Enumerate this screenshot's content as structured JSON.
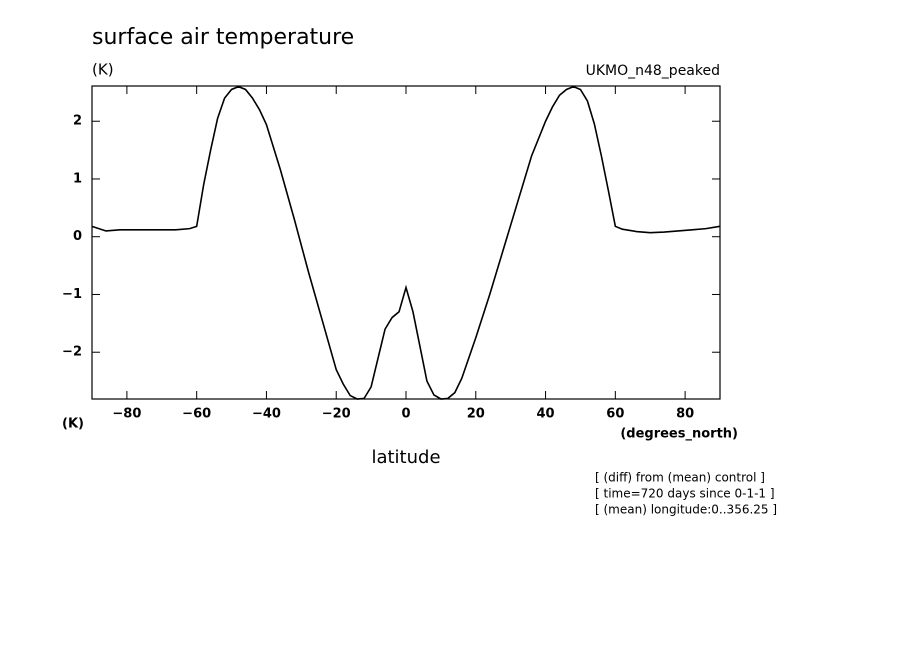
{
  "chart_data": {
    "type": "line",
    "title": "surface air temperature",
    "y_unit_top": "(K)",
    "y_unit_bottom": "(K)",
    "subtitle": "UKMO_n48_peaked",
    "x_unit": "(degrees_north)",
    "xlabel": "latitude",
    "annotations": [
      "[ (diff) from (mean) control ]",
      "[ time=720 days since 0-1-1 ]",
      "[ (mean) longitude:0..356.25 ]"
    ],
    "x": [
      -90,
      -86,
      -82,
      -78,
      -74,
      -70,
      -66,
      -62,
      -60,
      -58,
      -56,
      -54,
      -52,
      -50,
      -48,
      -46,
      -44,
      -42,
      -40,
      -36,
      -32,
      -28,
      -24,
      -20,
      -18,
      -16,
      -14,
      -12,
      -10,
      -8,
      -6,
      -4,
      -2,
      0,
      2,
      4,
      6,
      8,
      10,
      12,
      14,
      16,
      18,
      20,
      24,
      28,
      32,
      36,
      40,
      42,
      44,
      46,
      48,
      50,
      52,
      54,
      56,
      58,
      60,
      62,
      66,
      70,
      74,
      78,
      82,
      86,
      90
    ],
    "series": [
      {
        "name": "UKMO_n48_peaked",
        "color": "#000000",
        "values": [
          0.18,
          0.1,
          0.12,
          0.12,
          0.12,
          0.12,
          0.12,
          0.14,
          0.18,
          0.9,
          1.5,
          2.05,
          2.4,
          2.55,
          2.6,
          2.55,
          2.4,
          2.2,
          1.94,
          1.16,
          0.3,
          -0.6,
          -1.45,
          -2.3,
          -2.55,
          -2.75,
          -2.81,
          -2.8,
          -2.6,
          -2.1,
          -1.6,
          -1.4,
          -1.3,
          -0.88,
          -1.3,
          -1.9,
          -2.5,
          -2.74,
          -2.81,
          -2.8,
          -2.7,
          -2.45,
          -2.1,
          -1.75,
          -1.0,
          -0.2,
          0.6,
          1.4,
          2.0,
          2.25,
          2.45,
          2.55,
          2.6,
          2.55,
          2.35,
          1.95,
          1.4,
          0.8,
          0.18,
          0.13,
          0.09,
          0.07,
          0.08,
          0.1,
          0.12,
          0.14,
          0.18
        ]
      }
    ],
    "xlim": [
      -90,
      90
    ],
    "ylim": [
      -2.81,
      2.61
    ],
    "xticks": [
      {
        "value": -80,
        "label": "−80"
      },
      {
        "value": -60,
        "label": "−60"
      },
      {
        "value": -40,
        "label": "−40"
      },
      {
        "value": -20,
        "label": "−20"
      },
      0,
      20,
      40,
      60,
      80
    ],
    "yticks": [
      {
        "value": -2,
        "label": "−2"
      },
      {
        "value": -1,
        "label": "−1"
      },
      0,
      1,
      2
    ],
    "grid": false
  }
}
